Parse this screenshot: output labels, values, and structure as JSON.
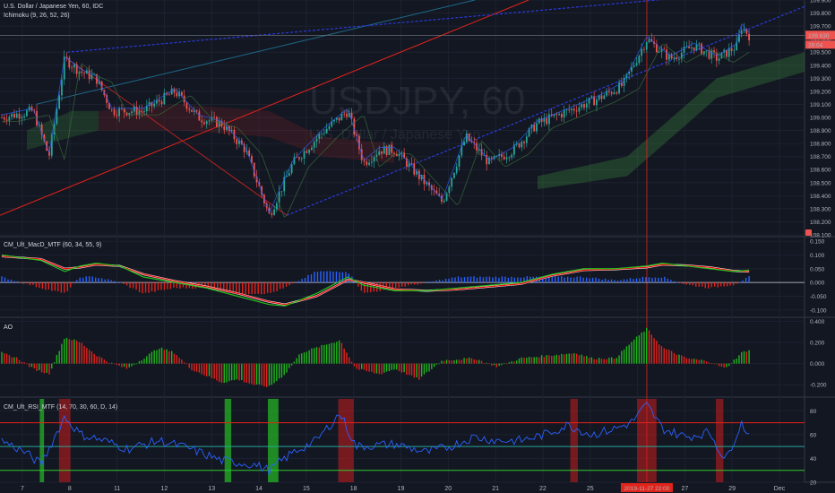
{
  "header": {
    "symbol": "U.S. Dollar / Japanese Yen, 60, IDC",
    "indicator": "Ichimoku (9, 26, 52, 26)",
    "watermark_symbol": "USDJPY, 60",
    "watermark_name": "U.S. Dollar / Japanese Yen"
  },
  "colors": {
    "background": "#131722",
    "grid": "#1e2230",
    "up": "#26a69a",
    "down": "#ef5350",
    "price_tag": "#ef5350",
    "rsi_rail": "#26a622",
    "macd_line": "#21c11b",
    "signal_line": "#e81010",
    "ao_up": "#1fb71a",
    "ao_down": "#e2231a",
    "rsi_line": "#2962ff"
  },
  "panes": {
    "macd_label": "CM_Ult_MacD_MTF (60, 34, 55, 9)",
    "ao_label": "AO",
    "rsi_label": "CM_Ult_RSI_MTF (14, 70, 30, 60, D, 14)"
  },
  "time_axis": {
    "labels": [
      "7",
      "8",
      "11",
      "12",
      "13",
      "14",
      "15",
      "18",
      "19",
      "20",
      "21",
      "22",
      "25",
      "26",
      "27",
      "29",
      "Dec"
    ],
    "crosshair_label": "2019-11-27  22:00"
  },
  "chart_data": [
    {
      "type": "candlestick",
      "pane": "price",
      "title": "U.S. Dollar / Japanese Yen, 60, IDC",
      "ylim": [
        108.1,
        109.9
      ],
      "y_ticks": [
        108.1,
        108.2,
        108.3,
        108.4,
        108.5,
        108.6,
        108.7,
        108.8,
        108.9,
        109.0,
        109.1,
        109.2,
        109.3,
        109.4,
        109.5,
        109.6,
        109.7,
        109.8,
        109.9
      ],
      "y_tick_labels": [
        "108.100",
        "108.200",
        "108.300",
        "108.400",
        "108.500",
        "108.600",
        "108.700",
        "108.800",
        "108.900",
        "109.000",
        "109.100",
        "109.200",
        "109.300",
        "109.400",
        "109.500",
        "109.600",
        "109.700",
        "109.800",
        "109.900"
      ],
      "last_price": 109.63,
      "last_price_label": "109.630",
      "countdown_label": "26:04",
      "path": [
        [
          0,
          109.0
        ],
        [
          0.04,
          109.05
        ],
        [
          0.06,
          108.7
        ],
        [
          0.08,
          109.45
        ],
        [
          0.1,
          109.35
        ],
        [
          0.12,
          109.3
        ],
        [
          0.14,
          109.05
        ],
        [
          0.18,
          109.05
        ],
        [
          0.22,
          109.2
        ],
        [
          0.25,
          109.0
        ],
        [
          0.28,
          108.95
        ],
        [
          0.31,
          108.75
        ],
        [
          0.34,
          108.25
        ],
        [
          0.37,
          108.65
        ],
        [
          0.41,
          108.9
        ],
        [
          0.44,
          109.05
        ],
        [
          0.46,
          108.65
        ],
        [
          0.48,
          108.75
        ],
        [
          0.5,
          108.75
        ],
        [
          0.53,
          108.55
        ],
        [
          0.56,
          108.35
        ],
        [
          0.59,
          108.85
        ],
        [
          0.62,
          108.65
        ],
        [
          0.65,
          108.75
        ],
        [
          0.68,
          108.95
        ],
        [
          0.72,
          109.05
        ],
        [
          0.76,
          109.15
        ],
        [
          0.79,
          109.25
        ],
        [
          0.82,
          109.6
        ],
        [
          0.85,
          109.45
        ],
        [
          0.88,
          109.55
        ],
        [
          0.91,
          109.45
        ],
        [
          0.935,
          109.55
        ],
        [
          0.94,
          109.7
        ],
        [
          0.95,
          109.63
        ]
      ]
    },
    {
      "type": "histogram+line",
      "pane": "macd",
      "title": "CM_Ult_MacD_MTF (60, 34, 55, 9)",
      "ylim": [
        -0.12,
        0.16
      ],
      "y_ticks": [
        0.15,
        0.1,
        0.05,
        0,
        -0.05,
        -0.1
      ],
      "y_tick_labels": [
        "0.150",
        "0.100",
        "0.050",
        "0.000",
        "-0.050",
        "-0.100"
      ],
      "macd": [
        [
          0,
          0.1
        ],
        [
          0.05,
          0.08
        ],
        [
          0.08,
          0.04
        ],
        [
          0.1,
          0.06
        ],
        [
          0.12,
          0.07
        ],
        [
          0.15,
          0.06
        ],
        [
          0.18,
          0.02
        ],
        [
          0.22,
          0.0
        ],
        [
          0.26,
          -0.02
        ],
        [
          0.3,
          -0.05
        ],
        [
          0.34,
          -0.08
        ],
        [
          0.36,
          -0.085
        ],
        [
          0.4,
          -0.04
        ],
        [
          0.44,
          0.02
        ],
        [
          0.46,
          -0.01
        ],
        [
          0.5,
          -0.03
        ],
        [
          0.54,
          -0.03
        ],
        [
          0.58,
          -0.02
        ],
        [
          0.62,
          -0.01
        ],
        [
          0.66,
          0.0
        ],
        [
          0.7,
          0.03
        ],
        [
          0.74,
          0.05
        ],
        [
          0.78,
          0.05
        ],
        [
          0.82,
          0.06
        ],
        [
          0.84,
          0.07
        ],
        [
          0.87,
          0.06
        ],
        [
          0.9,
          0.05
        ],
        [
          0.93,
          0.04
        ],
        [
          0.95,
          0.045
        ]
      ],
      "signal": [
        [
          0,
          0.095
        ],
        [
          0.05,
          0.085
        ],
        [
          0.08,
          0.05
        ],
        [
          0.1,
          0.055
        ],
        [
          0.12,
          0.065
        ],
        [
          0.15,
          0.06
        ],
        [
          0.18,
          0.03
        ],
        [
          0.22,
          0.005
        ],
        [
          0.26,
          -0.015
        ],
        [
          0.3,
          -0.04
        ],
        [
          0.34,
          -0.07
        ],
        [
          0.36,
          -0.08
        ],
        [
          0.4,
          -0.05
        ],
        [
          0.44,
          0.01
        ],
        [
          0.46,
          0.0
        ],
        [
          0.5,
          -0.025
        ],
        [
          0.54,
          -0.03
        ],
        [
          0.58,
          -0.025
        ],
        [
          0.62,
          -0.015
        ],
        [
          0.66,
          -0.005
        ],
        [
          0.7,
          0.025
        ],
        [
          0.74,
          0.045
        ],
        [
          0.78,
          0.048
        ],
        [
          0.82,
          0.055
        ],
        [
          0.84,
          0.065
        ],
        [
          0.87,
          0.062
        ],
        [
          0.9,
          0.055
        ],
        [
          0.93,
          0.042
        ],
        [
          0.95,
          0.04
        ]
      ]
    },
    {
      "type": "histogram",
      "pane": "ao",
      "title": "AO",
      "ylim": [
        -0.3,
        0.42
      ],
      "y_ticks": [
        0.4,
        0.2,
        0,
        -0.2
      ],
      "y_tick_labels": [
        "0.400",
        "0.200",
        "0.000",
        "-0.200"
      ],
      "values": [
        [
          0,
          0.1
        ],
        [
          0.02,
          0.05
        ],
        [
          0.04,
          -0.05
        ],
        [
          0.06,
          -0.1
        ],
        [
          0.08,
          0.25
        ],
        [
          0.1,
          0.2
        ],
        [
          0.12,
          0.08
        ],
        [
          0.14,
          0.0
        ],
        [
          0.16,
          -0.05
        ],
        [
          0.18,
          0.05
        ],
        [
          0.2,
          0.15
        ],
        [
          0.22,
          0.1
        ],
        [
          0.24,
          -0.05
        ],
        [
          0.28,
          -0.18
        ],
        [
          0.3,
          -0.15
        ],
        [
          0.32,
          -0.2
        ],
        [
          0.34,
          -0.22
        ],
        [
          0.36,
          -0.1
        ],
        [
          0.38,
          0.1
        ],
        [
          0.4,
          0.15
        ],
        [
          0.43,
          0.22
        ],
        [
          0.45,
          -0.05
        ],
        [
          0.48,
          -0.1
        ],
        [
          0.5,
          -0.05
        ],
        [
          0.53,
          -0.15
        ],
        [
          0.56,
          0.03
        ],
        [
          0.6,
          0.05
        ],
        [
          0.63,
          -0.03
        ],
        [
          0.66,
          0.05
        ],
        [
          0.7,
          0.08
        ],
        [
          0.73,
          0.1
        ],
        [
          0.75,
          0.05
        ],
        [
          0.78,
          0.05
        ],
        [
          0.8,
          0.2
        ],
        [
          0.82,
          0.33
        ],
        [
          0.84,
          0.15
        ],
        [
          0.87,
          0.05
        ],
        [
          0.9,
          0.02
        ],
        [
          0.92,
          -0.05
        ],
        [
          0.94,
          0.1
        ],
        [
          0.95,
          0.13
        ]
      ]
    },
    {
      "type": "line",
      "pane": "rsi",
      "title": "CM_Ult_RSI_MTF (14, 70, 30, 60, D, 14)",
      "ylim": [
        20,
        90
      ],
      "y_ticks": [
        80,
        60,
        40,
        20
      ],
      "y_tick_labels": [
        "80",
        "60",
        "40",
        "20"
      ],
      "levels": [
        70,
        50,
        30
      ],
      "values": [
        [
          0,
          55
        ],
        [
          0.03,
          45
        ],
        [
          0.05,
          35
        ],
        [
          0.08,
          75
        ],
        [
          0.1,
          60
        ],
        [
          0.13,
          55
        ],
        [
          0.16,
          48
        ],
        [
          0.2,
          55
        ],
        [
          0.24,
          48
        ],
        [
          0.28,
          38
        ],
        [
          0.32,
          35
        ],
        [
          0.34,
          30
        ],
        [
          0.37,
          45
        ],
        [
          0.4,
          55
        ],
        [
          0.43,
          78
        ],
        [
          0.45,
          50
        ],
        [
          0.5,
          52
        ],
        [
          0.54,
          45
        ],
        [
          0.57,
          50
        ],
        [
          0.6,
          58
        ],
        [
          0.63,
          55
        ],
        [
          0.66,
          55
        ],
        [
          0.69,
          60
        ],
        [
          0.72,
          68
        ],
        [
          0.75,
          60
        ],
        [
          0.78,
          65
        ],
        [
          0.8,
          70
        ],
        [
          0.82,
          85
        ],
        [
          0.84,
          65
        ],
        [
          0.87,
          58
        ],
        [
          0.9,
          62
        ],
        [
          0.92,
          38
        ],
        [
          0.94,
          70
        ],
        [
          0.95,
          60
        ]
      ],
      "overbought_zones": [
        [
          0.075,
          0.085
        ],
        [
          0.43,
          0.445
        ],
        [
          0.725,
          0.73
        ],
        [
          0.81,
          0.83
        ],
        [
          0.91,
          0.915
        ]
      ],
      "oversold_zones": [
        [
          0.05,
          0.052
        ],
        [
          0.285,
          0.29
        ],
        [
          0.34,
          0.35
        ]
      ]
    }
  ]
}
